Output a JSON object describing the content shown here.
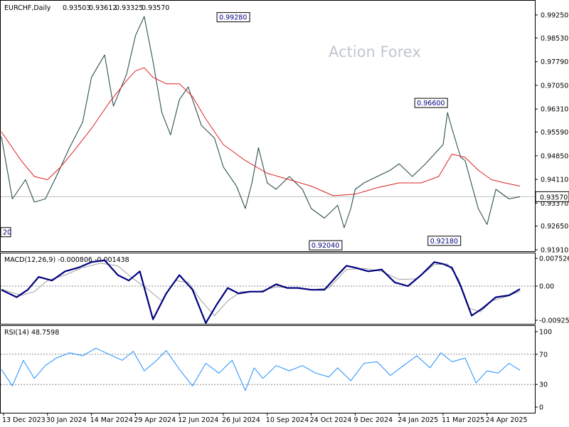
{
  "chart_data": [
    {
      "panel": "price",
      "type": "line",
      "title": "EURCHF,Daily",
      "ohlc_readout": [
        "0.93503",
        "0.93612",
        "0.93325",
        "0.93570"
      ],
      "watermark": "Action Forex",
      "x_ticks": [
        "13 Dec 2023",
        "30 Jan 2024",
        "14 Mar 2024",
        "29 Apr 2024",
        "12 Jun 2024",
        "26 Jul 2024",
        "10 Sep 2024",
        "24 Oct 2024",
        "9 Dec 2024",
        "24 Jan 2025",
        "11 Mar 2025",
        "24 Apr 2025"
      ],
      "y_ticks": [
        "0.99250",
        "0.98530",
        "0.97790",
        "0.97050",
        "0.96310",
        "0.95590",
        "0.94850",
        "0.94110",
        "0.93370",
        "0.92650",
        "0.91910"
      ],
      "ylim": [
        0.9191,
        0.9925
      ],
      "current_price": "0.93570",
      "annotations": [
        {
          "label": "0.99280",
          "x": 5.6,
          "y": 0.9928
        },
        {
          "label": "0.92040",
          "x": 7.7,
          "y": 0.9204
        },
        {
          "label": "0.96600",
          "x": 10.1,
          "y": 0.966
        },
        {
          "label": "0.92180",
          "x": 10.4,
          "y": 0.9218
        },
        {
          "label": "20",
          "x": -0.05,
          "y": 0.9245
        }
      ],
      "series": [
        {
          "role": "price",
          "color": "#2f4f4f",
          "x": [
            -0.05,
            0.2,
            0.5,
            0.7,
            0.95,
            1.2,
            1.5,
            1.8,
            2.0,
            2.3,
            2.5,
            2.8,
            3.0,
            3.2,
            3.4,
            3.6,
            3.8,
            4.0,
            4.2,
            4.5,
            4.8,
            5.0,
            5.3,
            5.5,
            5.65,
            5.8,
            6.0,
            6.2,
            6.5,
            6.8,
            7.0,
            7.3,
            7.6,
            7.75,
            7.9,
            8.0,
            8.2,
            8.5,
            8.8,
            9.0,
            9.3,
            9.6,
            10.0,
            10.1,
            10.2,
            10.4,
            10.5,
            10.8,
            11.0,
            11.2,
            11.5,
            11.75
          ],
          "y": [
            0.9545,
            0.935,
            0.941,
            0.934,
            0.935,
            0.942,
            0.951,
            0.959,
            0.973,
            0.98,
            0.964,
            0.974,
            0.986,
            0.992,
            0.978,
            0.962,
            0.955,
            0.966,
            0.97,
            0.958,
            0.954,
            0.945,
            0.939,
            0.932,
            0.94,
            0.951,
            0.94,
            0.938,
            0.942,
            0.938,
            0.932,
            0.929,
            0.933,
            0.926,
            0.932,
            0.938,
            0.94,
            0.942,
            0.944,
            0.946,
            0.942,
            0.946,
            0.952,
            0.962,
            0.957,
            0.948,
            0.947,
            0.932,
            0.927,
            0.938,
            0.935,
            0.9357
          ]
        },
        {
          "role": "moving-average",
          "color": "#dc2020",
          "x": [
            -0.05,
            0.4,
            0.7,
            1.0,
            1.3,
            1.6,
            2.0,
            2.4,
            2.8,
            3.0,
            3.2,
            3.4,
            3.7,
            4.0,
            4.3,
            4.6,
            5.0,
            5.5,
            6.0,
            6.5,
            7.0,
            7.5,
            8.0,
            8.5,
            9.0,
            9.5,
            9.9,
            10.2,
            10.5,
            10.8,
            11.1,
            11.4,
            11.75
          ],
          "y": [
            0.956,
            0.947,
            0.942,
            0.941,
            0.945,
            0.95,
            0.957,
            0.965,
            0.972,
            0.975,
            0.976,
            0.973,
            0.971,
            0.971,
            0.967,
            0.96,
            0.952,
            0.947,
            0.943,
            0.941,
            0.939,
            0.936,
            0.9365,
            0.9385,
            0.94,
            0.94,
            0.942,
            0.949,
            0.948,
            0.944,
            0.941,
            0.94,
            0.939
          ]
        }
      ]
    },
    {
      "panel": "macd",
      "type": "line",
      "title": "MACD(12,26,9) -0.000806 -0.001438",
      "y_ticks": [
        "0.007526",
        "0.00",
        "-0.009252"
      ],
      "ylim": [
        -0.009252,
        0.007526
      ],
      "series": [
        {
          "role": "macd",
          "color": "#000080",
          "x": [
            -0.05,
            0.3,
            0.55,
            0.8,
            1.1,
            1.4,
            1.7,
            2.0,
            2.3,
            2.6,
            2.85,
            3.1,
            3.4,
            3.7,
            4.0,
            4.3,
            4.6,
            4.85,
            5.1,
            5.35,
            5.6,
            5.9,
            6.2,
            6.45,
            6.7,
            7.0,
            7.3,
            7.6,
            7.8,
            8.0,
            8.3,
            8.6,
            8.9,
            9.2,
            9.5,
            9.8,
            10.0,
            10.2,
            10.4,
            10.65,
            10.9,
            11.2,
            11.5,
            11.75
          ],
          "y": [
            -0.001,
            -0.003,
            -0.001,
            0.0025,
            0.0015,
            0.004,
            0.005,
            0.0065,
            0.007,
            0.003,
            0.0015,
            0.004,
            -0.009,
            -0.002,
            0.003,
            -0.001,
            -0.01,
            -0.005,
            -0.0005,
            -0.002,
            -0.0015,
            -0.0015,
            0.0005,
            -0.0005,
            -0.0005,
            -0.001,
            -0.001,
            0.003,
            0.0055,
            0.005,
            0.004,
            0.0045,
            0.001,
            0.0,
            0.003,
            0.0065,
            0.006,
            0.005,
            0.0,
            -0.008,
            -0.006,
            -0.003,
            -0.0025,
            -0.0008
          ]
        },
        {
          "role": "signal",
          "color": "#a0a0a0",
          "x": [
            -0.05,
            0.4,
            0.7,
            1.0,
            1.4,
            1.8,
            2.2,
            2.6,
            2.95,
            3.3,
            3.6,
            3.9,
            4.2,
            4.5,
            4.8,
            5.1,
            5.4,
            5.8,
            6.2,
            6.6,
            7.0,
            7.4,
            7.8,
            8.2,
            8.6,
            9.0,
            9.4,
            9.8,
            10.1,
            10.35,
            10.6,
            10.85,
            11.1,
            11.4,
            11.75
          ],
          "y": [
            -0.0008,
            -0.0025,
            -0.0015,
            0.0015,
            0.003,
            0.005,
            0.0062,
            0.0055,
            0.002,
            -0.001,
            -0.004,
            0.0015,
            0.001,
            -0.004,
            -0.008,
            -0.004,
            -0.0015,
            -0.0015,
            -0.0002,
            -0.0005,
            -0.001,
            -0.0005,
            0.0045,
            0.0048,
            0.004,
            0.0018,
            0.002,
            0.0058,
            0.006,
            0.002,
            -0.006,
            -0.007,
            -0.004,
            -0.003,
            -0.0014
          ]
        }
      ]
    },
    {
      "panel": "rsi",
      "type": "line",
      "title": "RSI(14) 48.7598",
      "y_ticks": [
        "100",
        "70",
        "30",
        "0"
      ],
      "reference_levels": [
        70,
        30
      ],
      "ylim": [
        0,
        100
      ],
      "series": [
        {
          "role": "rsi",
          "color": "#1e90ff",
          "x": [
            -0.05,
            0.2,
            0.45,
            0.7,
            0.95,
            1.2,
            1.5,
            1.8,
            2.1,
            2.4,
            2.7,
            2.95,
            3.2,
            3.45,
            3.7,
            4.0,
            4.3,
            4.6,
            4.9,
            5.2,
            5.5,
            5.7,
            5.9,
            6.2,
            6.5,
            6.8,
            7.1,
            7.4,
            7.6,
            7.9,
            8.2,
            8.5,
            8.8,
            9.1,
            9.4,
            9.7,
            9.95,
            10.2,
            10.5,
            10.75,
            11.0,
            11.25,
            11.5,
            11.75
          ],
          "y": [
            50,
            28,
            62,
            38,
            55,
            65,
            72,
            68,
            78,
            70,
            62,
            74,
            48,
            60,
            75,
            50,
            28,
            58,
            45,
            62,
            22,
            52,
            38,
            55,
            48,
            55,
            45,
            40,
            52,
            35,
            58,
            60,
            42,
            55,
            68,
            52,
            72,
            60,
            65,
            32,
            48,
            45,
            58,
            48.76
          ]
        }
      ]
    }
  ]
}
